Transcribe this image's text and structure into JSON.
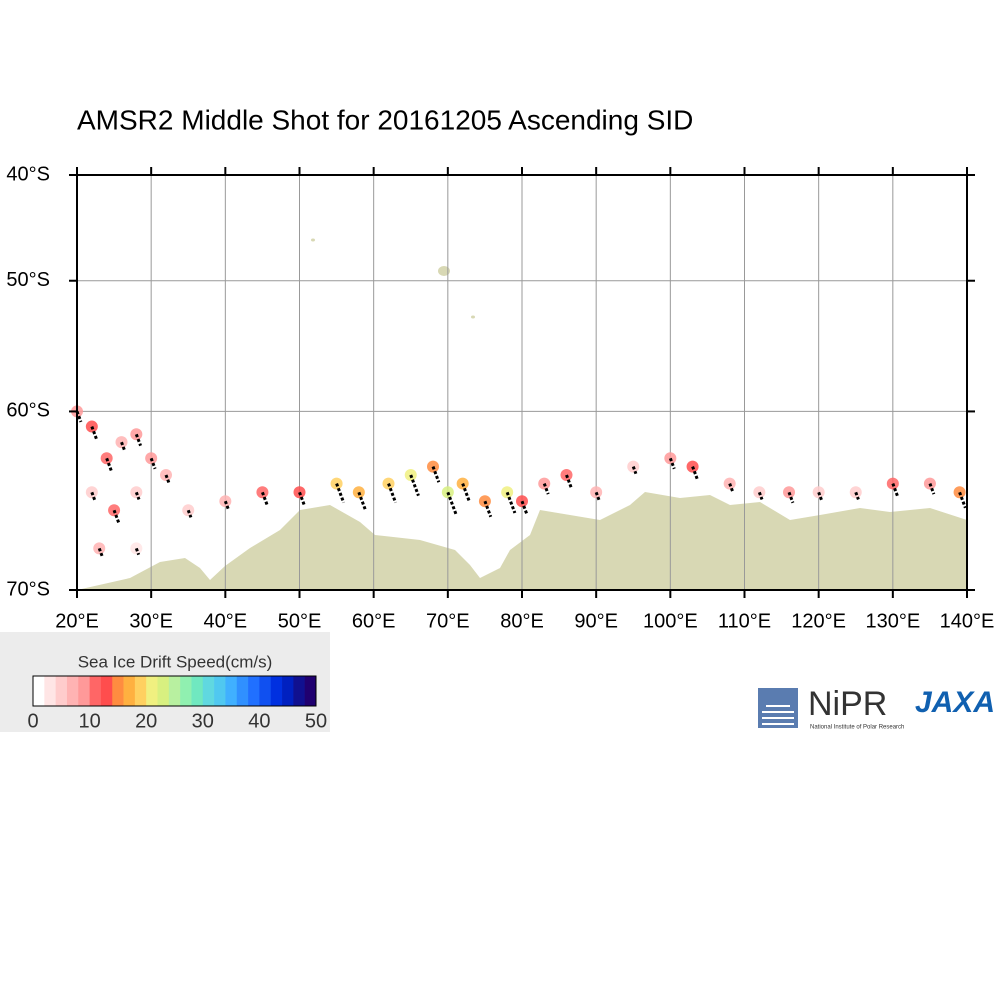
{
  "title": "AMSR2 Middle Shot for 20161205 Ascending SID",
  "map": {
    "projection": "mercator",
    "xlim": [
      20,
      140
    ],
    "ylim": [
      -70,
      -40
    ],
    "xticks": [
      {
        "value": 20,
        "label": "20°E"
      },
      {
        "value": 30,
        "label": "30°E"
      },
      {
        "value": 40,
        "label": "40°E"
      },
      {
        "value": 50,
        "label": "50°E"
      },
      {
        "value": 60,
        "label": "60°E"
      },
      {
        "value": 70,
        "label": "70°E"
      },
      {
        "value": 80,
        "label": "80°E"
      },
      {
        "value": 90,
        "label": "90°E"
      },
      {
        "value": 100,
        "label": "100°E"
      },
      {
        "value": 110,
        "label": "110°E"
      },
      {
        "value": 120,
        "label": "120°E"
      },
      {
        "value": 130,
        "label": "130°E"
      },
      {
        "value": 140,
        "label": "140°E"
      }
    ],
    "yticks": [
      {
        "value": -40,
        "label": "40°S"
      },
      {
        "value": -50,
        "label": "50°S"
      },
      {
        "value": -60,
        "label": "60°S"
      },
      {
        "value": -70,
        "label": "70°S"
      }
    ],
    "grid": true,
    "drift": {
      "lon": [
        20,
        22,
        24,
        26,
        28,
        30,
        22,
        25,
        28,
        32,
        35,
        23,
        28,
        40,
        45,
        50,
        55,
        58,
        62,
        65,
        68,
        70,
        72,
        75,
        78,
        80,
        83,
        86,
        90,
        95,
        100,
        103,
        108,
        112,
        116,
        120,
        125,
        130,
        135,
        139
      ],
      "lat": [
        -60,
        -61,
        -63,
        -62,
        -61.5,
        -63,
        -65,
        -66,
        -65,
        -64,
        -66,
        -68,
        -68,
        -65.5,
        -65,
        -65,
        -64.5,
        -65,
        -64.5,
        -64,
        -63.5,
        -65,
        -64.5,
        -65.5,
        -65,
        -65.5,
        -64.5,
        -64,
        -65,
        -63.5,
        -63,
        -63.5,
        -64.5,
        -65,
        -65,
        -65,
        -65,
        -64.5,
        -64.5,
        -65
      ],
      "speed": [
        8,
        12,
        10,
        6,
        9,
        8,
        5,
        10,
        4,
        6,
        4,
        6,
        3,
        6,
        10,
        12,
        18,
        16,
        18,
        20,
        14,
        22,
        16,
        14,
        20,
        12,
        8,
        10,
        6,
        4,
        8,
        12,
        6,
        4,
        8,
        5,
        4,
        10,
        8,
        14
      ]
    }
  },
  "colorbar": {
    "title": "Sea Ice Drift Speed(cm/s)",
    "lim": [
      0,
      50
    ],
    "ticks": [
      0,
      10,
      20,
      30,
      40,
      50
    ],
    "colors": [
      "#ffffff",
      "#ffe5e5",
      "#ffcccc",
      "#ffb3b3",
      "#ff9999",
      "#ff6666",
      "#ff4d4d",
      "#ff8c40",
      "#ffb040",
      "#ffd060",
      "#f0f080",
      "#d8f080",
      "#b8f0a0",
      "#90f0b0",
      "#70e8c0",
      "#60d8e0",
      "#50c8f0",
      "#40b0ff",
      "#3090ff",
      "#2070ff",
      "#1050f0",
      "#0030e0",
      "#0020c0",
      "#101090",
      "#200070"
    ]
  },
  "logos": {
    "nipr": "NiPR",
    "nipr_subtitle": "National Institute of Polar Research",
    "jaxa": "JAXA"
  }
}
